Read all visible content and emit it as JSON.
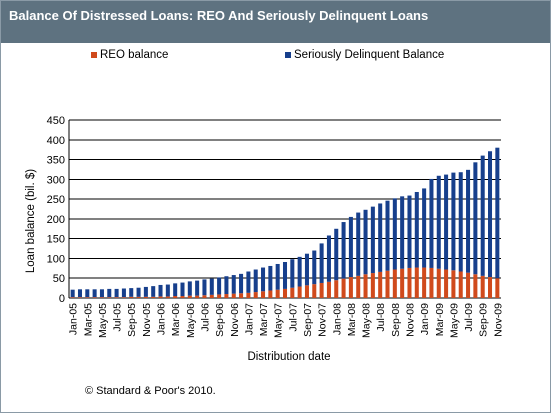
{
  "header": {
    "title": "Balance Of Distressed Loans: REO And Seriously Delinquent Loans"
  },
  "legend": {
    "items": [
      {
        "label": "REO balance",
        "color": "#d04a1c"
      },
      {
        "label": "Seriously Delinquent Balance",
        "color": "#173f8c"
      }
    ]
  },
  "footer": {
    "source": "© Standard & Poor's 2010."
  },
  "chart_data": {
    "type": "bar",
    "stacked": true,
    "xlabel": "Distribution date",
    "ylabel": "Loan balance (bil. $)",
    "ylim": [
      0,
      450
    ],
    "yticks": [
      0,
      50,
      100,
      150,
      200,
      250,
      300,
      350,
      400,
      450
    ],
    "grid": true,
    "legend_position": "top",
    "categories": [
      "Jan-05",
      "Feb-05",
      "Mar-05",
      "Apr-05",
      "May-05",
      "Jun-05",
      "Jul-05",
      "Aug-05",
      "Sep-05",
      "Oct-05",
      "Nov-05",
      "Dec-05",
      "Jan-06",
      "Feb-06",
      "Mar-06",
      "Apr-06",
      "May-06",
      "Jun-06",
      "Jul-06",
      "Aug-06",
      "Sep-06",
      "Oct-06",
      "Nov-06",
      "Dec-06",
      "Jan-07",
      "Feb-07",
      "Mar-07",
      "Apr-07",
      "May-07",
      "Jun-07",
      "Jul-07",
      "Aug-07",
      "Sep-07",
      "Oct-07",
      "Nov-07",
      "Dec-07",
      "Jan-08",
      "Feb-08",
      "Mar-08",
      "Apr-08",
      "May-08",
      "Jun-08",
      "Jul-08",
      "Aug-08",
      "Sep-08",
      "Oct-08",
      "Nov-08",
      "Dec-08",
      "Jan-09",
      "Feb-09",
      "Mar-09",
      "Apr-09",
      "May-09",
      "Jun-09",
      "Jul-09",
      "Aug-09",
      "Sep-09",
      "Oct-09",
      "Nov-09"
    ],
    "tick_labels": [
      "Jan-05",
      "Mar-05",
      "May-05",
      "Jul-05",
      "Sep-05",
      "Nov-05",
      "Jan-06",
      "Mar-06",
      "May-06",
      "Jul-06",
      "Sep-06",
      "Nov-06",
      "Jan-07",
      "Mar-07",
      "May-07",
      "Jul-07",
      "Sep-07",
      "Nov-07",
      "Jan-08",
      "Mar-08",
      "May-08",
      "Jul-08",
      "Sep-08",
      "Nov-08",
      "Jan-09",
      "Mar-09",
      "May-09",
      "Jul-09",
      "Sep-09",
      "Nov-09"
    ],
    "series": [
      {
        "name": "REO balance",
        "color": "#d04a1c",
        "values": [
          2,
          2,
          2,
          2,
          2,
          2,
          2,
          2,
          3,
          3,
          3,
          3,
          4,
          4,
          5,
          5,
          6,
          6,
          7,
          8,
          9,
          10,
          11,
          12,
          13,
          15,
          17,
          19,
          21,
          23,
          26,
          29,
          32,
          35,
          38,
          41,
          45,
          49,
          53,
          56,
          60,
          63,
          66,
          69,
          72,
          74,
          76,
          77,
          77,
          76,
          74,
          72,
          70,
          67,
          64,
          60,
          56,
          53,
          50
        ]
      },
      {
        "name": "Seriously Delinquent Balance",
        "color": "#173f8c",
        "values": [
          19,
          20,
          20,
          20,
          20,
          21,
          21,
          22,
          22,
          23,
          25,
          27,
          29,
          30,
          32,
          34,
          36,
          38,
          40,
          41,
          43,
          45,
          47,
          49,
          54,
          57,
          60,
          62,
          65,
          68,
          72,
          75,
          80,
          85,
          100,
          117,
          130,
          143,
          152,
          160,
          163,
          168,
          173,
          177,
          180,
          183,
          183,
          191,
          200,
          225,
          235,
          240,
          247,
          251,
          260,
          283,
          304,
          318,
          330
        ]
      }
    ]
  }
}
